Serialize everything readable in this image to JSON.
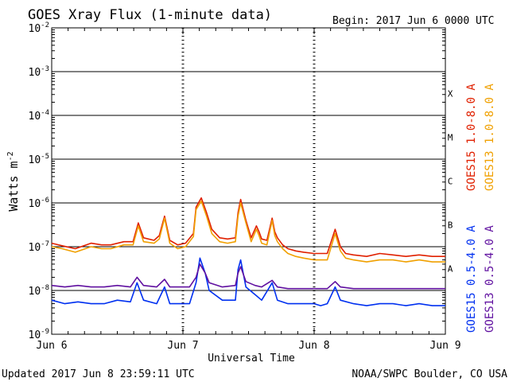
{
  "chart_data": {
    "type": "line",
    "title": "GOES Xray Flux (1-minute data)",
    "begin_label": "Begin:  2017 Jun 6 0000 UTC",
    "xlabel": "Universal Time",
    "ylabel_base": "Watts m",
    "ylabel_exp": "-2",
    "updated_label": "Updated 2017 Jun  8 23:59:11 UTC",
    "source_label": "NOAA/SWPC Boulder, CO USA",
    "y_scale": "log",
    "ylim": [
      1e-09,
      0.01
    ],
    "x_ticks": [
      "Jun 6",
      "Jun 7",
      "Jun 8",
      "Jun 9"
    ],
    "y_ticks": [
      {
        "base": "10",
        "exp": "-2"
      },
      {
        "base": "10",
        "exp": "-3"
      },
      {
        "base": "10",
        "exp": "-4"
      },
      {
        "base": "10",
        "exp": "-5"
      },
      {
        "base": "10",
        "exp": "-6"
      },
      {
        "base": "10",
        "exp": "-7"
      },
      {
        "base": "10",
        "exp": "-8"
      },
      {
        "base": "10",
        "exp": "-9"
      }
    ],
    "flare_classes": [
      "X",
      "M",
      "C",
      "B",
      "A"
    ],
    "grid": true,
    "x_days": 3,
    "series": [
      {
        "name": "GOES15 1.0-8.0 A",
        "color": "#e02000",
        "x": [
          0,
          0.08,
          0.18,
          0.3,
          0.38,
          0.45,
          0.55,
          0.62,
          0.66,
          0.7,
          0.78,
          0.82,
          0.86,
          0.9,
          0.96,
          1.02,
          1.08,
          1.1,
          1.14,
          1.18,
          1.22,
          1.28,
          1.34,
          1.4,
          1.42,
          1.44,
          1.48,
          1.52,
          1.56,
          1.58,
          1.6,
          1.64,
          1.68,
          1.7,
          1.72,
          1.76,
          1.8,
          1.86,
          1.92,
          2.0,
          2.1,
          2.16,
          2.2,
          2.24,
          2.3,
          2.4,
          2.5,
          2.6,
          2.7,
          2.8,
          2.9,
          3.0
        ],
        "y": [
          1.2e-07,
          1.05e-07,
          9e-08,
          1.2e-07,
          1.1e-07,
          1.1e-07,
          1.3e-07,
          1.3e-07,
          3.5e-07,
          1.6e-07,
          1.4e-07,
          1.8e-07,
          5e-07,
          1.4e-07,
          1.1e-07,
          1.2e-07,
          2e-07,
          8e-07,
          1.3e-06,
          6e-07,
          2.5e-07,
          1.6e-07,
          1.5e-07,
          1.6e-07,
          6e-07,
          1.2e-06,
          4e-07,
          1.6e-07,
          3e-07,
          2.2e-07,
          1.5e-07,
          1.4e-07,
          4.5e-07,
          2.2e-07,
          1.6e-07,
          1.1e-07,
          9e-08,
          8e-08,
          7.5e-08,
          7e-08,
          7e-08,
          2.5e-07,
          1e-07,
          7e-08,
          6.5e-08,
          6e-08,
          7e-08,
          6.5e-08,
          6e-08,
          6.5e-08,
          6e-08,
          6e-08
        ]
      },
      {
        "name": "GOES13 1.0-8.0 A",
        "color": "#f0a000",
        "x": [
          0,
          0.08,
          0.18,
          0.3,
          0.38,
          0.45,
          0.55,
          0.62,
          0.66,
          0.7,
          0.78,
          0.82,
          0.86,
          0.9,
          0.96,
          1.02,
          1.08,
          1.1,
          1.14,
          1.18,
          1.22,
          1.28,
          1.34,
          1.4,
          1.42,
          1.44,
          1.48,
          1.52,
          1.56,
          1.58,
          1.6,
          1.64,
          1.68,
          1.7,
          1.72,
          1.76,
          1.8,
          1.86,
          1.92,
          2.0,
          2.1,
          2.16,
          2.2,
          2.24,
          2.3,
          2.4,
          2.5,
          2.6,
          2.7,
          2.8,
          2.9,
          3.0
        ],
        "y": [
          1e-07,
          9e-08,
          7.5e-08,
          1e-07,
          9e-08,
          9e-08,
          1.1e-07,
          1.1e-07,
          3e-07,
          1.3e-07,
          1.2e-07,
          1.5e-07,
          4.5e-07,
          1.2e-07,
          9e-08,
          1e-07,
          1.7e-07,
          7e-07,
          1.1e-06,
          5e-07,
          2e-07,
          1.3e-07,
          1.2e-07,
          1.3e-07,
          5e-07,
          1e-06,
          3.5e-07,
          1.3e-07,
          2.5e-07,
          1.8e-07,
          1.2e-07,
          1.1e-07,
          4e-07,
          1.8e-07,
          1.3e-07,
          9e-08,
          7e-08,
          6e-08,
          5.5e-08,
          5e-08,
          5e-08,
          2e-07,
          8e-08,
          5.5e-08,
          5e-08,
          4.5e-08,
          5e-08,
          5e-08,
          4.5e-08,
          5e-08,
          4.5e-08,
          4.5e-08
        ]
      },
      {
        "name": "GOES15 0.5-4.0 A",
        "color": "#0030f0",
        "x": [
          0,
          0.1,
          0.2,
          0.3,
          0.4,
          0.5,
          0.6,
          0.65,
          0.7,
          0.8,
          0.86,
          0.9,
          1.0,
          1.05,
          1.1,
          1.13,
          1.17,
          1.2,
          1.3,
          1.4,
          1.42,
          1.44,
          1.48,
          1.55,
          1.6,
          1.68,
          1.72,
          1.8,
          1.9,
          2.0,
          2.05,
          2.1,
          2.16,
          2.2,
          2.3,
          2.4,
          2.5,
          2.6,
          2.7,
          2.8,
          2.9,
          3.0
        ],
        "y": [
          6e-09,
          5e-09,
          5.5e-09,
          5e-09,
          5e-09,
          6e-09,
          5.5e-09,
          1.5e-08,
          6e-09,
          5e-09,
          1.2e-08,
          5e-09,
          5e-09,
          5e-09,
          1.5e-08,
          5.5e-08,
          2.5e-08,
          1e-08,
          6e-09,
          6e-09,
          3e-08,
          5e-08,
          1.2e-08,
          8e-09,
          6e-09,
          1.5e-08,
          6e-09,
          5e-09,
          5e-09,
          5e-09,
          4.5e-09,
          5e-09,
          1.2e-08,
          6e-09,
          5e-09,
          4.5e-09,
          5e-09,
          5e-09,
          4.5e-09,
          5e-09,
          4.5e-09,
          4.5e-09
        ]
      },
      {
        "name": "GOES13 0.5-4.0 A",
        "color": "#6010a0",
        "x": [
          0,
          0.1,
          0.2,
          0.3,
          0.4,
          0.5,
          0.6,
          0.65,
          0.7,
          0.8,
          0.86,
          0.9,
          1.0,
          1.05,
          1.1,
          1.13,
          1.17,
          1.2,
          1.3,
          1.4,
          1.42,
          1.44,
          1.48,
          1.55,
          1.6,
          1.68,
          1.72,
          1.8,
          1.9,
          2.0,
          2.05,
          2.1,
          2.16,
          2.2,
          2.3,
          2.4,
          2.5,
          2.6,
          2.7,
          2.8,
          2.9,
          3.0
        ],
        "y": [
          1.3e-08,
          1.2e-08,
          1.3e-08,
          1.2e-08,
          1.2e-08,
          1.3e-08,
          1.2e-08,
          2e-08,
          1.3e-08,
          1.2e-08,
          1.8e-08,
          1.2e-08,
          1.2e-08,
          1.2e-08,
          2e-08,
          4e-08,
          2.5e-08,
          1.5e-08,
          1.2e-08,
          1.3e-08,
          2.5e-08,
          3.5e-08,
          1.6e-08,
          1.3e-08,
          1.2e-08,
          1.7e-08,
          1.2e-08,
          1.1e-08,
          1.1e-08,
          1.1e-08,
          1.1e-08,
          1.1e-08,
          1.6e-08,
          1.2e-08,
          1.1e-08,
          1.1e-08,
          1.1e-08,
          1.1e-08,
          1.1e-08,
          1.1e-08,
          1.1e-08,
          1.1e-08
        ]
      }
    ]
  }
}
